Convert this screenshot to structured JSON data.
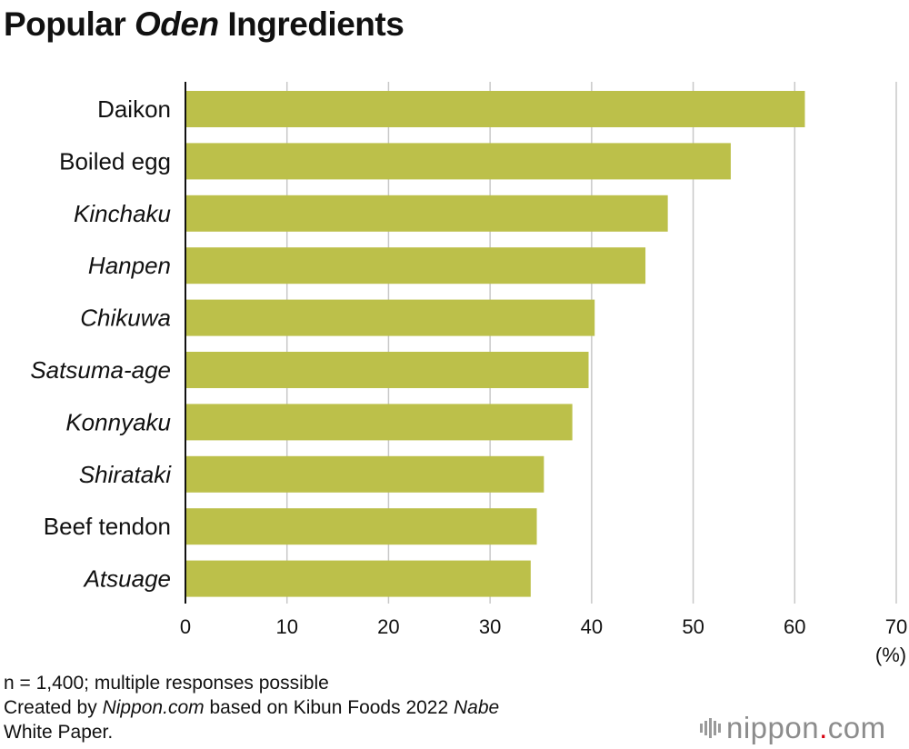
{
  "title": {
    "prefix": "Popular ",
    "emphasis": "Oden",
    "suffix": " Ingredients"
  },
  "chart_data": {
    "type": "bar",
    "orientation": "horizontal",
    "categories": [
      "Daikon",
      "Boiled egg",
      "Kinchaku",
      "Hanpen",
      "Chikuwa",
      "Satsuma-age",
      "Konnyaku",
      "Shirataki",
      "Beef tendon",
      "Atsuage"
    ],
    "italic_categories": [
      false,
      false,
      true,
      true,
      true,
      true,
      true,
      true,
      false,
      true
    ],
    "values": [
      61.0,
      53.7,
      47.5,
      45.3,
      40.3,
      39.7,
      38.1,
      35.3,
      34.6,
      34.0
    ],
    "xlim": [
      0,
      70
    ],
    "xticks": [
      0,
      10,
      20,
      30,
      40,
      50,
      60,
      70
    ],
    "xunit": "(%)",
    "grid": true,
    "bar_color": "#bcc04a",
    "grid_color": "#c8c8c8"
  },
  "notes": {
    "line1": "n = 1,400; multiple responses possible",
    "line2_prefix": "Created by ",
    "line2_source": "Nippon.com",
    "line2_mid": " based on Kibun Foods 2022 ",
    "line2_emphasis": "Nabe",
    "line3": "White Paper."
  },
  "logo": {
    "text": "nippon",
    "dot": ".",
    "suffix": "com"
  }
}
